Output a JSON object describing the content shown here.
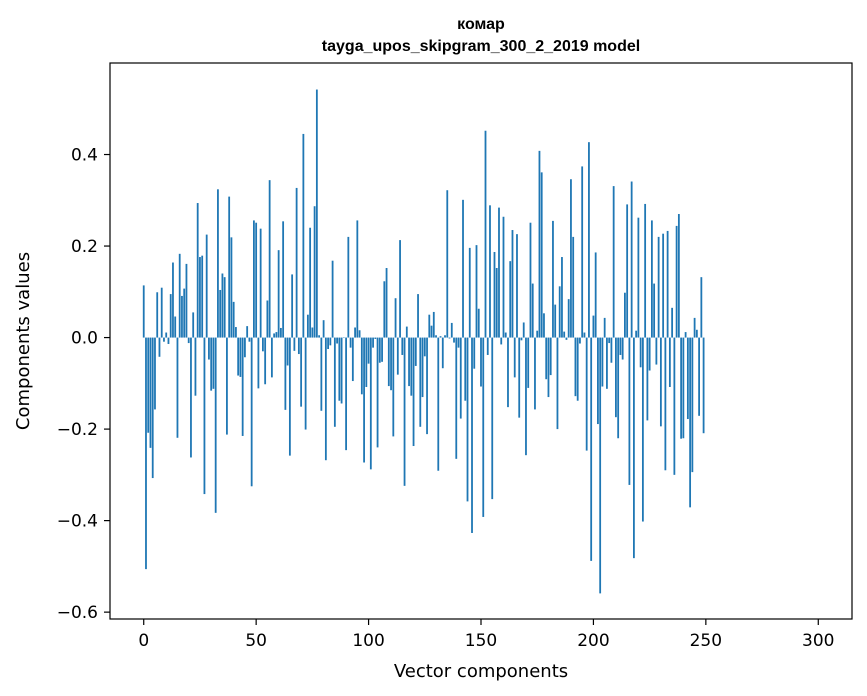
{
  "chart_data": {
    "type": "bar",
    "title_line1": "комар",
    "title_line2": "tayga_upos_skipgram_300_2_2019 model",
    "xlabel": "Vector components",
    "ylabel": "Components values",
    "xlim": [
      -15,
      315
    ],
    "ylim": [
      -0.615,
      0.6
    ],
    "x_ticks": [
      0,
      50,
      100,
      150,
      200,
      250,
      300
    ],
    "x_tick_labels": [
      "0",
      "50",
      "100",
      "150",
      "200",
      "250",
      "300"
    ],
    "y_ticks": [
      -0.6,
      -0.4,
      -0.2,
      0.0,
      0.2,
      0.4
    ],
    "y_tick_labels": [
      "−0.6",
      "−0.4",
      "−0.2",
      "0.0",
      "0.2",
      "0.4"
    ],
    "bar_color": "#1f77b4",
    "values": [
      0.114,
      -0.506,
      -0.208,
      -0.241,
      -0.307,
      -0.157,
      0.099,
      -0.042,
      0.109,
      -0.009,
      0.011,
      -0.014,
      0.095,
      0.164,
      0.046,
      -0.219,
      0.183,
      0.091,
      0.107,
      0.161,
      -0.012,
      -0.262,
      0.055,
      -0.127,
      0.294,
      0.176,
      0.179,
      -0.342,
      0.225,
      -0.048,
      -0.116,
      -0.112,
      -0.383,
      0.324,
      0.104,
      0.14,
      0.132,
      -0.212,
      0.308,
      0.219,
      0.078,
      0.023,
      -0.083,
      -0.086,
      -0.215,
      -0.043,
      0.025,
      -0.009,
      -0.325,
      0.256,
      0.251,
      -0.111,
      0.238,
      -0.03,
      -0.102,
      0.081,
      0.344,
      -0.087,
      0.009,
      0.012,
      0.191,
      0.021,
      0.254,
      -0.158,
      -0.061,
      -0.258,
      0.138,
      -0.029,
      0.327,
      -0.036,
      -0.151,
      0.445,
      -0.201,
      0.05,
      0.24,
      0.022,
      0.287,
      0.542,
      0.005,
      -0.16,
      0.038,
      -0.268,
      -0.025,
      -0.017,
      0.168,
      -0.195,
      -0.013,
      -0.138,
      -0.144,
      -0.001,
      -0.246,
      0.22,
      -0.022,
      -0.095,
      0.022,
      0.256,
      0.016,
      -0.124,
      -0.273,
      -0.108,
      -0.057,
      -0.288,
      -0.022,
      -0.003,
      -0.24,
      -0.055,
      -0.053,
      0.123,
      0.152,
      -0.106,
      -0.115,
      -0.216,
      0.086,
      -0.081,
      0.213,
      -0.038,
      -0.324,
      0.024,
      -0.106,
      -0.127,
      -0.237,
      -0.062,
      0.095,
      -0.195,
      -0.13,
      -0.041,
      -0.211,
      0.05,
      0.026,
      0.056,
      0.005,
      -0.291,
      0.003,
      -0.067,
      0.005,
      0.322,
      -0.002,
      0.032,
      -0.011,
      -0.265,
      -0.022,
      -0.177,
      0.301,
      -0.138,
      -0.358,
      0.196,
      -0.427,
      -0.068,
      0.202,
      0.063,
      -0.107,
      -0.392,
      0.452,
      -0.038,
      0.289,
      -0.353,
      0.187,
      0.152,
      0.284,
      -0.015,
      0.264,
      0.011,
      -0.152,
      0.167,
      0.235,
      -0.087,
      0.226,
      -0.175,
      -0.006,
      0.033,
      -0.257,
      -0.11,
      0.251,
      0.118,
      -0.157,
      0.015,
      0.408,
      0.361,
      0.053,
      -0.091,
      -0.13,
      -0.082,
      0.255,
      0.072,
      -0.2,
      0.112,
      0.176,
      0.013,
      -0.005,
      0.084,
      0.346,
      0.22,
      -0.128,
      -0.138,
      -0.013,
      0.374,
      0.011,
      -0.247,
      0.427,
      -0.488,
      0.048,
      0.186,
      -0.189,
      -0.559,
      -0.107,
      0.043,
      -0.112,
      -0.012,
      -0.055,
      0.331,
      -0.174,
      -0.22,
      -0.038,
      -0.048,
      0.098,
      0.291,
      -0.322,
      0.341,
      -0.482,
      0.015,
      0.262,
      -0.065,
      -0.402,
      0.292,
      -0.181,
      -0.072,
      0.256,
      0.118,
      -0.059,
      0.22,
      -0.194,
      0.227,
      -0.29,
      0.233,
      -0.108,
      0.065,
      -0.3,
      0.244,
      0.27,
      -0.221,
      -0.22,
      0.012,
      -0.178,
      -0.371,
      -0.294,
      0.043,
      0.017,
      -0.171,
      0.132,
      -0.209
    ]
  }
}
